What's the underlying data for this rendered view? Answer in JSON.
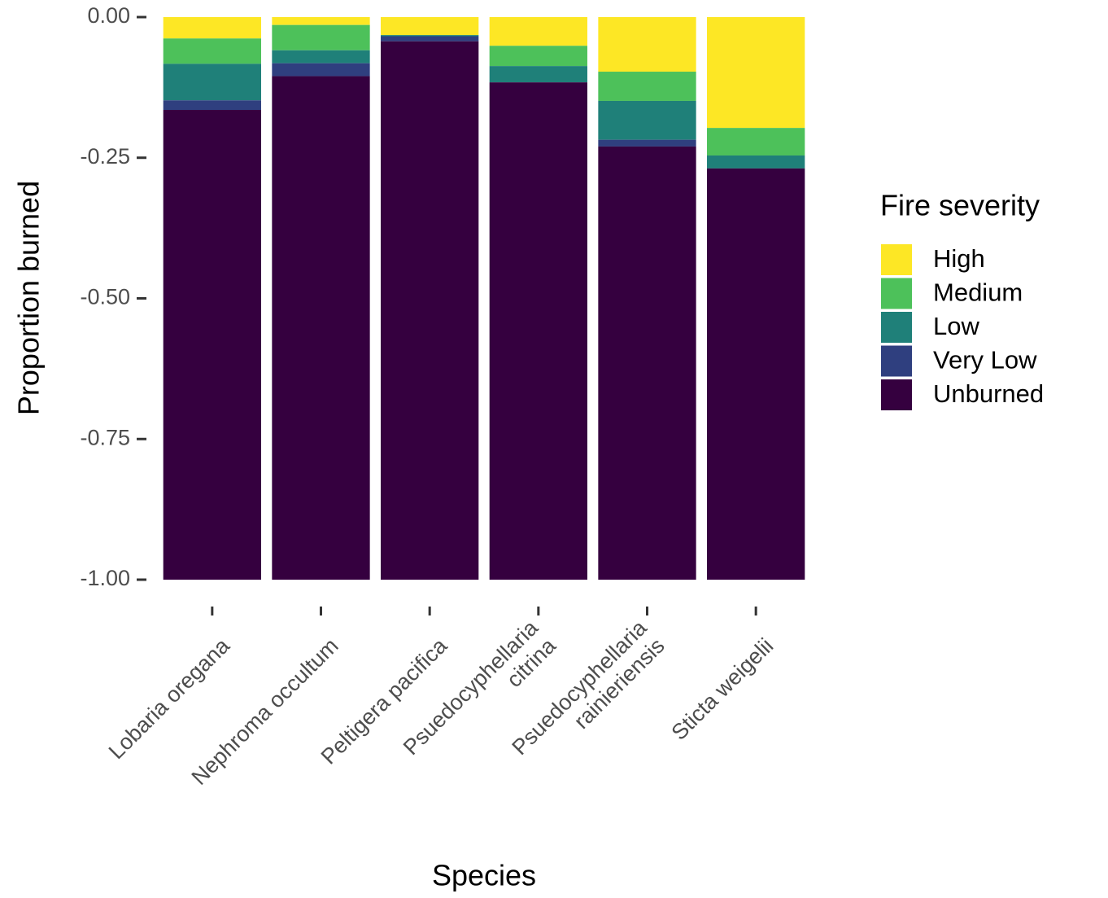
{
  "chart_data": {
    "type": "stacked_bar",
    "x_label": "Species",
    "y_label": "Proportion burned",
    "legend_title": "Fire severity",
    "legend_position": "right",
    "categories": [
      "Lobaria oregana",
      "Nephroma occultum",
      "Peltigera pacifica",
      "Psuedocyphellaria\ncitrina",
      "Psuedocyphellaria\nrainieriensis",
      "Sticta weigelii"
    ],
    "series": [
      {
        "name": "High",
        "color": "#fde725",
        "values": [
          -0.038,
          -0.014,
          -0.032,
          -0.051,
          -0.097,
          -0.197
        ]
      },
      {
        "name": "Medium",
        "color": "#4dc15a",
        "values": [
          -0.045,
          -0.045,
          0,
          -0.036,
          -0.052,
          -0.049
        ]
      },
      {
        "name": "Low",
        "color": "#1f8079",
        "values": [
          -0.065,
          -0.023,
          -0.002,
          -0.029,
          -0.069,
          -0.023
        ]
      },
      {
        "name": "Very Low",
        "color": "#2f3f7f",
        "values": [
          -0.017,
          -0.023,
          -0.009,
          0,
          -0.012,
          0
        ]
      },
      {
        "name": "Unburned",
        "color": "#35003f",
        "values": [
          -0.835,
          -0.895,
          -0.957,
          -0.884,
          -0.77,
          -0.731
        ]
      }
    ],
    "ylim": [
      -1,
      0
    ],
    "yticks": [
      {
        "value": 0,
        "label": "0.00"
      },
      {
        "value": -0.25,
        "label": "-0.25"
      },
      {
        "value": -0.5,
        "label": "-0.50"
      },
      {
        "value": -0.75,
        "label": "-0.75"
      },
      {
        "value": -1,
        "label": "-1.00"
      }
    ],
    "grid": false
  }
}
